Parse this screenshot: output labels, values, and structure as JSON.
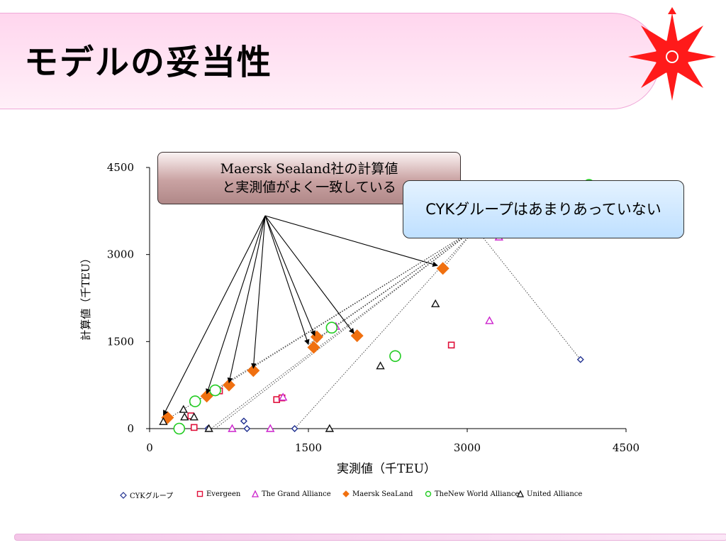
{
  "slide": {
    "title": "モデルの妥当性",
    "colors": {
      "header_band": "#ffd6ee",
      "logo_red": "#ff1a1a"
    }
  },
  "callouts": {
    "maersk_line1": "Maersk Sealand社の計算値",
    "maersk_line2": "と実測値がよく一致している",
    "cyk": "CYKグループはあまりあっていない"
  },
  "chart_data": {
    "type": "scatter",
    "xlabel": "実測値（千TEU）",
    "ylabel": "計算値（千TEU）",
    "xlim": [
      0,
      4500
    ],
    "ylim": [
      0,
      4500
    ],
    "xticks": [
      0,
      1500,
      3000,
      4500
    ],
    "yticks": [
      0,
      1500,
      3000,
      4500
    ],
    "grid": false,
    "legend_position": "bottom",
    "series": [
      {
        "name": "CYKグループ",
        "marker": "diamond-open",
        "color": "#1f2f8f",
        "points": [
          [
            550,
            0
          ],
          [
            890,
            130
          ],
          [
            920,
            0
          ],
          [
            1370,
            0
          ],
          [
            4070,
            1190
          ]
        ]
      },
      {
        "name": "Evergeen",
        "marker": "square-open",
        "color": "#e0103a",
        "points": [
          [
            390,
            220
          ],
          [
            420,
            20
          ],
          [
            1200,
            500
          ],
          [
            1250,
            530
          ],
          [
            2850,
            1440
          ],
          [
            660,
            650
          ]
        ]
      },
      {
        "name": "The Grand Alliance",
        "marker": "triangle-open",
        "color": "#cc22cc",
        "points": [
          [
            780,
            0
          ],
          [
            1140,
            0
          ],
          [
            1260,
            540
          ],
          [
            1760,
            1760
          ],
          [
            3210,
            1860
          ],
          [
            3300,
            3300
          ]
        ]
      },
      {
        "name": "Maersk SeaLand",
        "marker": "diamond-filled",
        "color": "#f07010",
        "points": [
          [
            170,
            190
          ],
          [
            540,
            560
          ],
          [
            750,
            750
          ],
          [
            980,
            1000
          ],
          [
            1550,
            1400
          ],
          [
            1580,
            1580
          ],
          [
            1960,
            1600
          ],
          [
            2770,
            2760
          ]
        ]
      },
      {
        "name": "TheNew World Alliance",
        "marker": "circle-open",
        "color": "#22cc22",
        "points": [
          [
            280,
            0
          ],
          [
            430,
            470
          ],
          [
            620,
            660
          ],
          [
            1720,
            1740
          ],
          [
            2320,
            1250
          ],
          [
            4150,
            4200
          ]
        ]
      },
      {
        "name": "United Alliance",
        "marker": "triangle-open",
        "color": "#111111",
        "points": [
          [
            130,
            120
          ],
          [
            320,
            330
          ],
          [
            420,
            200
          ],
          [
            560,
            0
          ],
          [
            1700,
            0
          ],
          [
            2180,
            1080
          ],
          [
            2700,
            2150
          ],
          [
            330,
            200
          ]
        ]
      }
    ]
  }
}
